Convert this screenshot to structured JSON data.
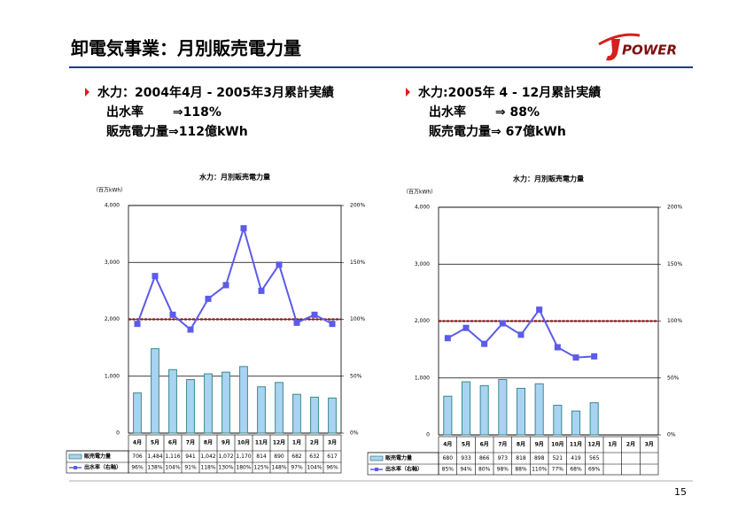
{
  "header": {
    "title": "卸電気事業：月別販売電力量",
    "logo": "POWER"
  },
  "bullets": [
    {
      "lines": [
        "水力：2004年4月 - 2005年3月累計実績",
        "出水率　　 ⇒118%",
        "販売電力量⇒112億kWh"
      ]
    },
    {
      "lines": [
        "水力:2005年 4 - 12月累計実績",
        "出水率　　 ⇒  88%",
        "販売電力量⇒  67億kWh"
      ]
    }
  ],
  "page_number": "15",
  "chart_data": [
    {
      "type": "combo",
      "title": "水力：月別販売電力量",
      "y_label": "（百万kWh）",
      "categories": [
        "4月",
        "5月",
        "6月",
        "7月",
        "8月",
        "9月",
        "10月",
        "11月",
        "12月",
        "1月",
        "2月",
        "3月"
      ],
      "series": [
        {
          "name": "販売電力量",
          "color": "#a9d3f2",
          "values": [
            706,
            1484,
            1116,
            941,
            1042,
            1072,
            1170,
            814,
            890,
            682,
            632,
            617
          ],
          "value_labels": [
            "706",
            "1,484",
            "1,116",
            "941",
            "1,042",
            "1,072",
            "1,170",
            "814",
            "890",
            "682",
            "632",
            "617"
          ]
        },
        {
          "name": "出水率（右軸）",
          "axis": "y2",
          "color": "#5b5bea",
          "values": [
            96,
            138,
            104,
            91,
            118,
            130,
            180,
            125,
            148,
            97,
            104,
            96
          ],
          "value_labels": [
            "96%",
            "138%",
            "104%",
            "91%",
            "118%",
            "130%",
            "180%",
            "125%",
            "148%",
            "97%",
            "104%",
            "96%"
          ]
        }
      ],
      "ylim": [
        0,
        4000
      ],
      "yticks": [
        0,
        {
          "value": 1000,
          "label": "1,000"
        },
        {
          "value": 2000,
          "label": "2,000"
        },
        {
          "value": 3000,
          "label": "3,000"
        },
        {
          "value": 4000,
          "label": "4,000"
        }
      ],
      "y2lim": [
        0,
        200
      ],
      "y2ticks": [
        {
          "value": 0,
          "label": "0%"
        },
        {
          "value": 50,
          "label": "50%"
        },
        {
          "value": 100,
          "label": "100%"
        },
        {
          "value": 150,
          "label": "150%"
        },
        {
          "value": 200,
          "label": "200%"
        }
      ],
      "grid": true,
      "reference_line": {
        "axis": "y2",
        "value": 100,
        "color": "#8b1a1a"
      }
    },
    {
      "type": "combo",
      "title": "水力：月別販売電力量",
      "y_label": "（百万kWh）",
      "categories": [
        "4月",
        "5月",
        "6月",
        "7月",
        "8月",
        "9月",
        "10月",
        "11月",
        "12月",
        "1月",
        "2月",
        "3月"
      ],
      "series": [
        {
          "name": "販売電力量",
          "color": "#a9d3f2",
          "values": [
            680,
            933,
            866,
            973,
            818,
            898,
            521,
            419,
            565,
            null,
            null,
            null
          ],
          "value_labels": [
            "680",
            "933",
            "866",
            "973",
            "818",
            "898",
            "521",
            "419",
            "565",
            null,
            null,
            null
          ]
        },
        {
          "name": "出水率（右軸）",
          "axis": "y2",
          "color": "#5b5bea",
          "values": [
            85,
            94,
            80,
            98,
            88,
            110,
            77,
            68,
            69,
            null,
            null,
            null
          ],
          "value_labels": [
            "85%",
            "94%",
            "80%",
            "98%",
            "88%",
            "110%",
            "77%",
            "68%",
            "69%",
            null,
            null,
            null
          ]
        }
      ],
      "ylim": [
        0,
        4000
      ],
      "yticks": [
        0,
        {
          "value": 1000,
          "label": "1,000"
        },
        {
          "value": 2000,
          "label": "2,000"
        },
        {
          "value": 3000,
          "label": "3,000"
        },
        {
          "value": 4000,
          "label": "4,000"
        }
      ],
      "y2lim": [
        0,
        200
      ],
      "y2ticks": [
        {
          "value": 0,
          "label": "0%"
        },
        {
          "value": 50,
          "label": "50%"
        },
        {
          "value": 100,
          "label": "100%"
        },
        {
          "value": 150,
          "label": "150%"
        },
        {
          "value": 200,
          "label": "200%"
        }
      ],
      "grid": true,
      "reference_line": {
        "axis": "y2",
        "value": 100,
        "color": "#8b1a1a"
      }
    }
  ]
}
